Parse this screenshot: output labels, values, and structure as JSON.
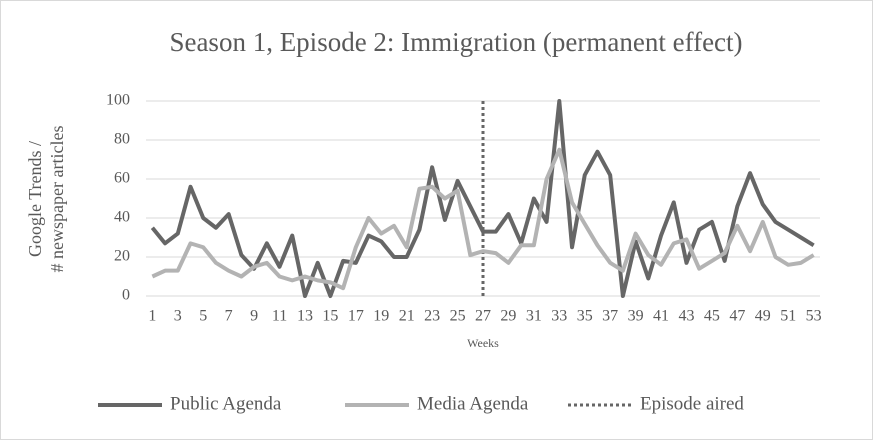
{
  "chart_data": {
    "type": "line",
    "title": "Season 1, Episode 2: Immigration (permanent effect)",
    "y_label": [
      "Google Trends /",
      "# newspaper articles"
    ],
    "x_label": "Weeks",
    "categories": [
      1,
      null,
      3,
      null,
      5,
      null,
      7,
      null,
      9,
      null,
      11,
      null,
      13,
      null,
      15,
      null,
      17,
      null,
      19,
      null,
      21,
      null,
      23,
      null,
      25,
      null,
      27,
      null,
      29,
      null,
      31,
      null,
      33,
      null,
      35,
      null,
      37,
      null,
      39,
      null,
      41,
      null,
      43,
      null,
      45,
      null,
      47,
      null,
      49,
      null,
      51,
      null,
      53
    ],
    "series": [
      {
        "name": "Public Agenda",
        "color": "#666666",
        "values": [
          35,
          27,
          32,
          56,
          40,
          35,
          42,
          21,
          14,
          27,
          15,
          31,
          0,
          17,
          0,
          18,
          17,
          31,
          28,
          20,
          20,
          34,
          66,
          39,
          59,
          46,
          33,
          33,
          42,
          27,
          50,
          38,
          100,
          25,
          62,
          74,
          62,
          0,
          28,
          9,
          31,
          48,
          17,
          34,
          38,
          18,
          46,
          63,
          47,
          38,
          34,
          30,
          26
        ]
      },
      {
        "name": "Media Agenda",
        "color": "#b3b3b3",
        "values": [
          10,
          13,
          13,
          27,
          25,
          17,
          13,
          10,
          15,
          17,
          10,
          8,
          10,
          8,
          7,
          4,
          25,
          40,
          32,
          36,
          25,
          55,
          56,
          50,
          54,
          21,
          23,
          22,
          17,
          26,
          26,
          60,
          75,
          48,
          37,
          26,
          17,
          13,
          32,
          21,
          16,
          27,
          29,
          14,
          18,
          22,
          36,
          23,
          38,
          20,
          16,
          17,
          21
        ]
      }
    ],
    "episode": {
      "name": "Episode aired",
      "week": 27,
      "color": "#666666"
    },
    "ylim": [
      0,
      100
    ],
    "yticks": [
      0,
      20,
      40,
      60,
      80,
      100
    ],
    "grid": true,
    "legend": "bottom"
  }
}
